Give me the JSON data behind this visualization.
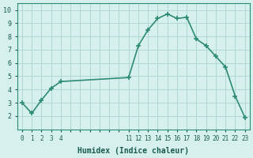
{
  "x": [
    0,
    1,
    2,
    3,
    4,
    11,
    12,
    13,
    14,
    15,
    16,
    17,
    18,
    19,
    20,
    21,
    22,
    23
  ],
  "y": [
    3.0,
    2.2,
    3.2,
    4.1,
    4.6,
    4.9,
    7.3,
    8.5,
    9.35,
    9.7,
    9.35,
    9.45,
    7.8,
    7.3,
    6.5,
    5.7,
    3.5,
    1.9
  ],
  "line_color": "#2e8b74",
  "bg_color": "#d6f0ee",
  "grid_color": "#b0d8d4",
  "xlabel": "Humidex (Indice chaleur)",
  "yticks": [
    2,
    3,
    4,
    5,
    6,
    7,
    8,
    9,
    10
  ],
  "font_color": "#1a5c4f"
}
